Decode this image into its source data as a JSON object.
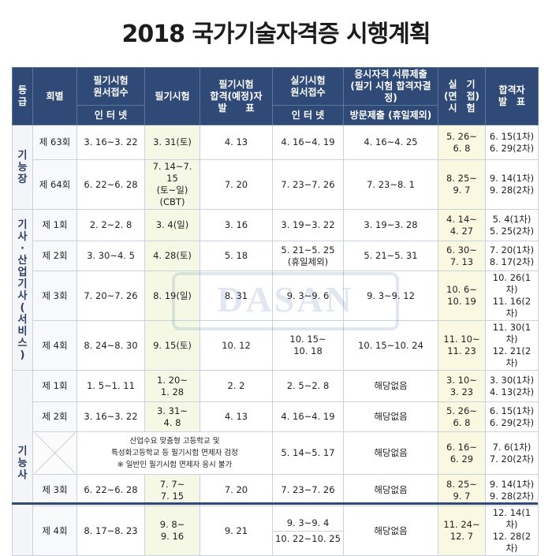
{
  "title": "2018 국가기술자격증 시행계획",
  "watermark": "DASAN",
  "headers": {
    "grade_lines": [
      "등",
      "급"
    ],
    "round": "회별",
    "written_app": "필기시험\n원서접수",
    "written_app_sub": "인 터 넷",
    "written_exam": "필기시험",
    "written_result": "필기시험\n합격(예정)자\n발　　표",
    "practical_app": "실기시험\n원서접수",
    "practical_app_sub": "인 터 넷",
    "doc_submit": "응시자격 서류제출\n(필기 시험 합격자결정)",
    "doc_submit_sub": "방문제출 (휴일제외)",
    "practical_exam": "실　기\n(면　접)\n시　험",
    "final_result": "합격자\n발　표"
  },
  "groups": [
    {
      "grade_lines": [
        "기",
        "능",
        "장"
      ],
      "rows": [
        {
          "round": "제 63회",
          "written_app": "3. 16~3. 22",
          "written_exam": "3. 31(토)",
          "written_result": "4. 13",
          "practical_app": "4. 16~4. 19",
          "doc_submit": "4. 16~4. 25",
          "practical_exam": "5. 26~\n6. 8",
          "final_result": "6. 15(1차)\n6. 29(2차)"
        },
        {
          "round": "제 64회",
          "written_app": "6. 22~6. 28",
          "written_exam": "7. 14~7. 15\n(토~일)\n(CBT)",
          "written_result": "7. 20",
          "practical_app": "7. 23~7. 26",
          "doc_submit": "7. 23~8. 1",
          "practical_exam": "8. 25~\n9. 7",
          "final_result": "9. 14(1차)\n9. 28(2차)"
        }
      ]
    },
    {
      "grade_lines": [
        "기",
        "사",
        "·",
        "산",
        "업",
        "기",
        "사",
        "(",
        "서",
        "비",
        "스",
        ")"
      ],
      "rows": [
        {
          "round": "제 1회",
          "written_app": "2. 2~2. 8",
          "written_exam": "3. 4(일)",
          "written_result": "3. 16",
          "practical_app": "3. 19~3. 22",
          "doc_submit": "3. 19~3. 28",
          "practical_exam": "4. 14~\n4. 27",
          "final_result": "5. 4(1차)\n5. 25(2차)"
        },
        {
          "round": "제 2회",
          "written_app": "3. 30~4. 5",
          "written_exam": "4. 28(토)",
          "written_result": "5. 18",
          "practical_app": "5. 21~5. 25\n(휴일제외)",
          "doc_submit": "5. 21~5. 31",
          "practical_exam": "6. 30~\n7. 13",
          "final_result": "7. 20(1차)\n8. 17(2차)"
        },
        {
          "round": "제 3회",
          "written_app": "7. 20~7. 26",
          "written_exam": "8. 19(일)",
          "written_result": "8. 31",
          "practical_app": "9. 3~9. 6",
          "doc_submit": "9. 3~9. 12",
          "practical_exam": "10. 6~\n10. 19",
          "final_result": "10. 26(1차)\n11. 16(2차)"
        },
        {
          "round": "제 4회",
          "written_app": "8. 24~8. 30",
          "written_exam": "9. 15(토)",
          "written_result": "10. 12",
          "practical_app": "10. 15~\n10. 18",
          "doc_submit": "10. 15~10. 24",
          "practical_exam": "11. 10~\n11. 23",
          "final_result": "11. 30(1차)\n12. 21(2차)"
        }
      ]
    },
    {
      "grade_lines": [
        "기",
        "능",
        "사"
      ],
      "rows": [
        {
          "round": "제 1회",
          "written_app": "1. 5~1. 11",
          "written_exam": "1. 20~\n1. 28",
          "written_result": "2. 2",
          "practical_app": "2. 5~2. 8",
          "doc_submit": "해당없음",
          "practical_exam": "3. 10~\n3. 23",
          "final_result": "3. 30(1차)\n4. 13(2차)"
        },
        {
          "round": "제 2회",
          "written_app": "3. 16~3. 22",
          "written_exam": "3. 31~\n4. 8",
          "written_result": "4. 13",
          "practical_app": "4. 16~4. 19",
          "doc_submit": "해당없음",
          "practical_exam": "5. 26~\n6. 8",
          "final_result": "6. 15(1차)\n6. 29(2차)"
        },
        {
          "special": true,
          "note": "산업수요 맞춤형 고등학교 및\n특성화고등학교 등 필기시험 면제자 검정\n※ 일반인 필기시험 면제자 응시 불가",
          "practical_app": "5. 14~5. 17",
          "doc_submit": "해당없음",
          "practical_exam": "6. 16~\n6. 29",
          "final_result": "7. 6(1차)\n7. 20(2차)"
        },
        {
          "round": "제 3회",
          "written_app": "6. 22~6. 28",
          "written_exam": "7. 7~\n7. 15",
          "written_result": "7. 20",
          "practical_app": "7. 23~7. 26",
          "doc_submit": "해당없음",
          "practical_exam": "8. 25~\n9. 7",
          "final_result": "9. 14(1차)\n9. 28(2차)"
        },
        {
          "round": "제 4회",
          "written_app": "8. 17~8. 23",
          "written_exam": "9. 8~\n9. 16",
          "written_result": "9. 21",
          "practical_app": "9. 3~9. 4\n10. 22~10. 25",
          "doc_submit": "해당없음",
          "practical_exam": "11. 24~\n12. 7",
          "final_result": "12. 14(1차)\n12. 28(2차)"
        }
      ]
    }
  ]
}
